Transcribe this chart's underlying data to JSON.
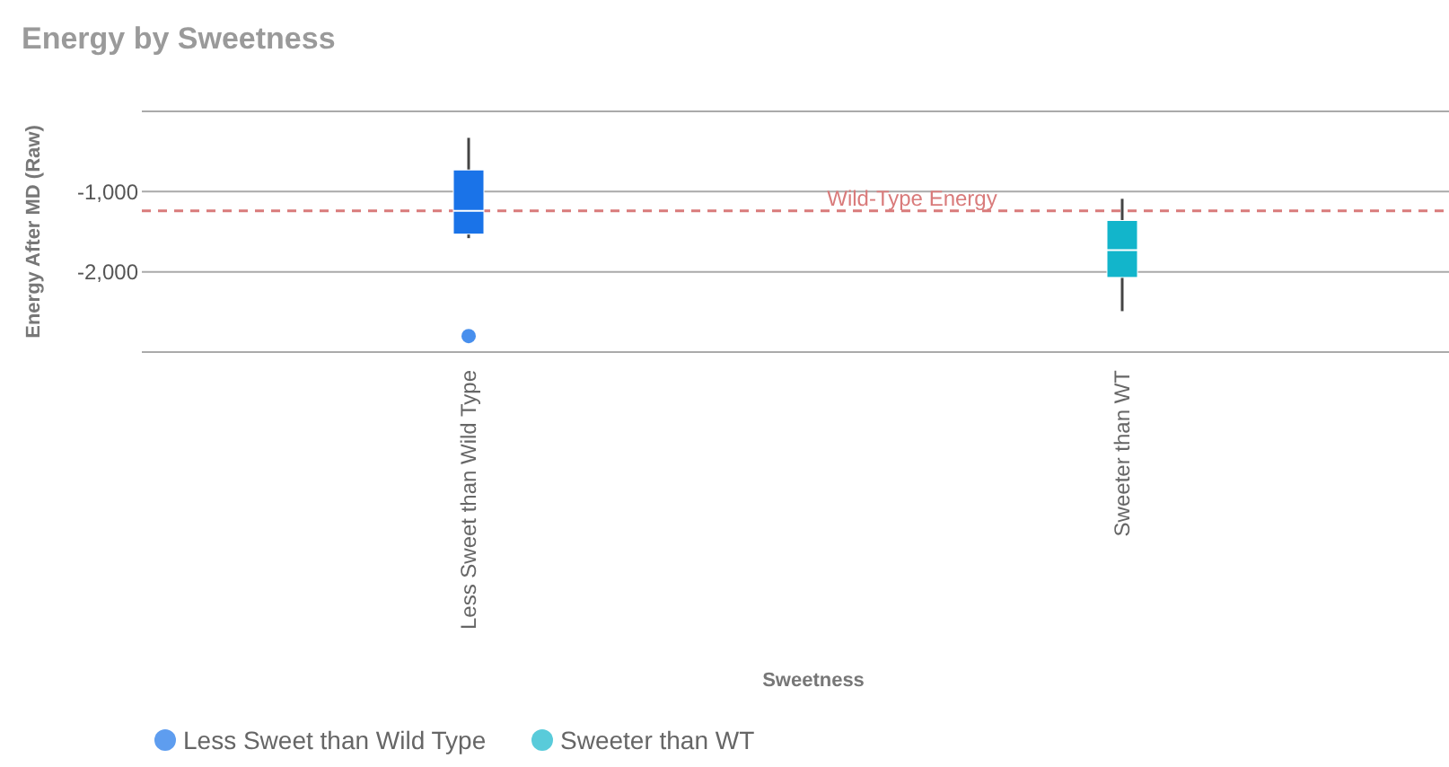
{
  "chart_data": {
    "type": "box",
    "title": "Energy by Sweetness",
    "xlabel": "Sweetness",
    "ylabel": "Energy After MD (Raw)",
    "categories": [
      "Less Sweet than Wild Type",
      "Sweeter than WT"
    ],
    "series": [
      {
        "name": "Less Sweet than Wild Type",
        "color": "#1a73e8",
        "boxes": [
          {
            "low": -1580,
            "q1": -1530,
            "median": -1240,
            "q3": -730,
            "high": -330,
            "outliers": [
              -2800
            ]
          },
          null
        ]
      },
      {
        "name": "Sweeter than WT",
        "color": "#12b5cb",
        "boxes": [
          null,
          {
            "low": -2490,
            "q1": -2070,
            "median": -1730,
            "q3": -1360,
            "high": -1090
          }
        ]
      }
    ],
    "ylim": [
      -3000,
      0
    ],
    "yticks": [
      {
        "value": -3000,
        "label": null
      },
      {
        "value": -2000,
        "label": "-2,000"
      },
      {
        "value": -1000,
        "label": "-1,000"
      },
      {
        "value": 0,
        "label": null
      }
    ],
    "grid": "y",
    "legend": "bottom left",
    "ref_lines": [
      {
        "axis": "y",
        "value": -1240,
        "label": "Wild-Type Energy",
        "color": "#d97b7b",
        "line_style": "dashed"
      }
    ]
  }
}
